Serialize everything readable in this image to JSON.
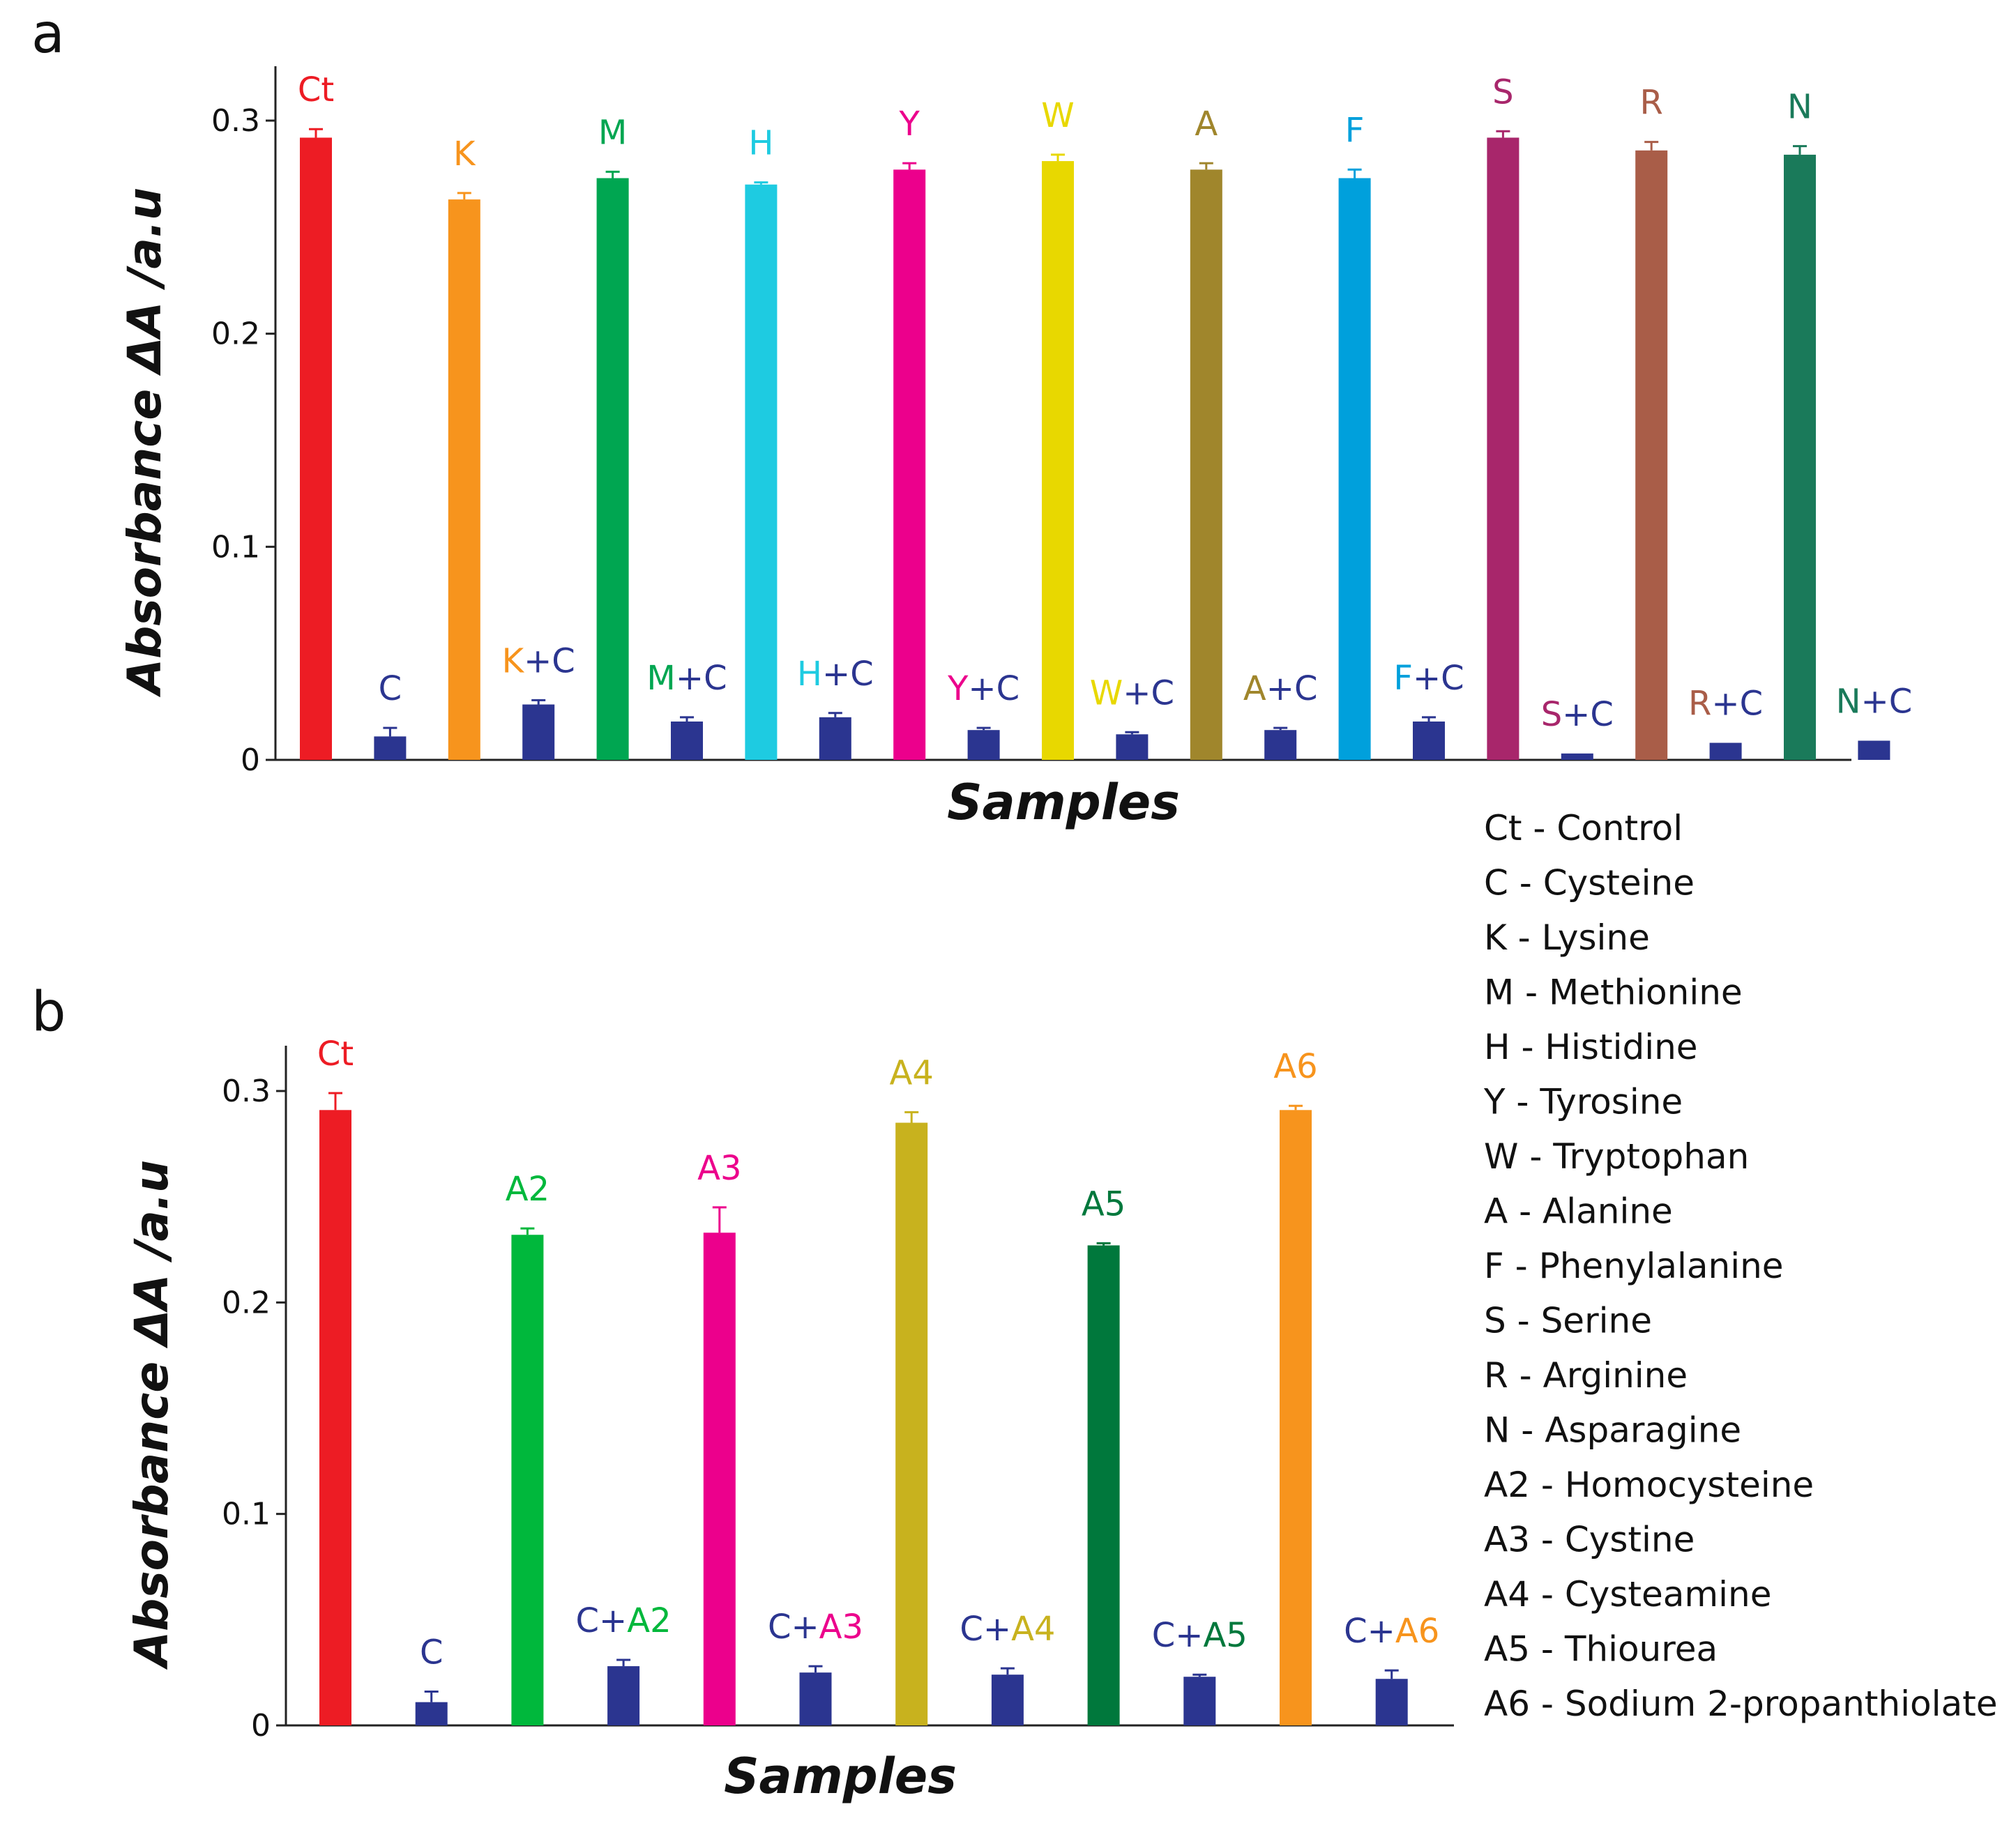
{
  "colors": {
    "combo": "#2b3590",
    "axis": "#222222"
  },
  "panel_a": {
    "letter": "a"
  },
  "panel_b": {
    "letter": "b"
  },
  "chart_data": [
    {
      "type": "bar",
      "panel": "a",
      "title": "",
      "xlabel": "Samples",
      "ylabel": "Absorbance ΔA /a.u",
      "ylim": [
        0,
        0.32
      ],
      "yticks": [
        0,
        0.1,
        0.2,
        0.3
      ],
      "ytick_labels": [
        "0",
        "0.1",
        "0.2",
        "0.3"
      ],
      "bars": [
        {
          "label": "Ct",
          "value": 0.292,
          "error": 0.004,
          "color": "#ed1c24"
        },
        {
          "label": "C",
          "value": 0.011,
          "error": 0.004,
          "color": "#2b3590",
          "label_parts": [
            {
              "text": "C",
              "color": "#2b3590"
            }
          ]
        },
        {
          "label": "K",
          "value": 0.263,
          "error": 0.003,
          "color": "#f7941d"
        },
        {
          "label": "K+C",
          "value": 0.026,
          "error": 0.002,
          "color": "#2b3590",
          "label_parts": [
            {
              "text": "K",
              "color": "#f7941d"
            },
            {
              "text": "+C",
              "color": "#2b3590"
            }
          ]
        },
        {
          "label": "M",
          "value": 0.273,
          "error": 0.003,
          "color": "#00a651"
        },
        {
          "label": "M+C",
          "value": 0.018,
          "error": 0.002,
          "color": "#2b3590",
          "label_parts": [
            {
              "text": "M",
              "color": "#00a651"
            },
            {
              "text": "+C",
              "color": "#2b3590"
            }
          ]
        },
        {
          "label": "H",
          "value": 0.27,
          "error": 0.001,
          "color": "#1ecbe1"
        },
        {
          "label": "H+C",
          "value": 0.02,
          "error": 0.002,
          "color": "#2b3590",
          "label_parts": [
            {
              "text": "H",
              "color": "#1ecbe1"
            },
            {
              "text": "+C",
              "color": "#2b3590"
            }
          ]
        },
        {
          "label": "Y",
          "value": 0.277,
          "error": 0.003,
          "color": "#ec008c"
        },
        {
          "label": "Y+C",
          "value": 0.014,
          "error": 0.001,
          "color": "#2b3590",
          "label_parts": [
            {
              "text": "Y",
              "color": "#ec008c"
            },
            {
              "text": "+C",
              "color": "#2b3590"
            }
          ]
        },
        {
          "label": "W",
          "value": 0.281,
          "error": 0.003,
          "color": "#e8d800"
        },
        {
          "label": "W+C",
          "value": 0.012,
          "error": 0.001,
          "color": "#2b3590",
          "label_parts": [
            {
              "text": "W",
              "color": "#e8d800"
            },
            {
              "text": "+C",
              "color": "#2b3590"
            }
          ]
        },
        {
          "label": "A",
          "value": 0.277,
          "error": 0.003,
          "color": "#a0862c"
        },
        {
          "label": "A+C",
          "value": 0.014,
          "error": 0.001,
          "color": "#2b3590",
          "label_parts": [
            {
              "text": "A",
              "color": "#a0862c"
            },
            {
              "text": "+C",
              "color": "#2b3590"
            }
          ]
        },
        {
          "label": "F",
          "value": 0.273,
          "error": 0.004,
          "color": "#00a0dc"
        },
        {
          "label": "F+C",
          "value": 0.018,
          "error": 0.002,
          "color": "#2b3590",
          "label_parts": [
            {
              "text": "F",
              "color": "#00a0dc"
            },
            {
              "text": "+C",
              "color": "#2b3590"
            }
          ]
        },
        {
          "label": "S",
          "value": 0.292,
          "error": 0.003,
          "color": "#a8266b"
        },
        {
          "label": "S+C",
          "value": 0.003,
          "error": 0.0,
          "color": "#2b3590",
          "label_parts": [
            {
              "text": "S",
              "color": "#a8266b"
            },
            {
              "text": "+C",
              "color": "#2b3590"
            }
          ]
        },
        {
          "label": "R",
          "value": 0.286,
          "error": 0.004,
          "color": "#a95d48"
        },
        {
          "label": "R+C",
          "value": 0.008,
          "error": 0.0,
          "color": "#2b3590",
          "label_parts": [
            {
              "text": "R",
              "color": "#a95d48"
            },
            {
              "text": "+C",
              "color": "#2b3590"
            }
          ]
        },
        {
          "label": "N",
          "value": 0.284,
          "error": 0.004,
          "color": "#1a7a5a"
        },
        {
          "label": "N+C",
          "value": 0.009,
          "error": 0.0,
          "color": "#2b3590",
          "label_parts": [
            {
              "text": "N",
              "color": "#1a7a5a"
            },
            {
              "text": "+C",
              "color": "#2b3590"
            }
          ]
        }
      ]
    },
    {
      "type": "bar",
      "panel": "b",
      "title": "",
      "xlabel": "Samples",
      "ylabel": "Absorbance ΔA /a.u",
      "ylim": [
        0,
        0.32
      ],
      "yticks": [
        0,
        0.1,
        0.2,
        0.3
      ],
      "ytick_labels": [
        "0",
        "0.1",
        "0.2",
        "0.3"
      ],
      "bars": [
        {
          "label": "Ct",
          "value": 0.291,
          "error": 0.008,
          "color": "#ed1c24"
        },
        {
          "label": "C",
          "value": 0.011,
          "error": 0.005,
          "color": "#2b3590",
          "label_parts": [
            {
              "text": "C",
              "color": "#2b3590"
            }
          ]
        },
        {
          "label": "A2",
          "value": 0.232,
          "error": 0.003,
          "color": "#00b83c"
        },
        {
          "label": "C+A2",
          "value": 0.028,
          "error": 0.003,
          "color": "#2b3590",
          "label_parts": [
            {
              "text": "C+",
              "color": "#2b3590"
            },
            {
              "text": "A2",
              "color": "#00b83c"
            }
          ]
        },
        {
          "label": "A3",
          "value": 0.233,
          "error": 0.012,
          "color": "#ec008c"
        },
        {
          "label": "C+A3",
          "value": 0.025,
          "error": 0.003,
          "color": "#2b3590",
          "label_parts": [
            {
              "text": "C+",
              "color": "#2b3590"
            },
            {
              "text": "A3",
              "color": "#ec008c"
            }
          ]
        },
        {
          "label": "A4",
          "value": 0.285,
          "error": 0.005,
          "color": "#c8b21e"
        },
        {
          "label": "C+A4",
          "value": 0.024,
          "error": 0.003,
          "color": "#2b3590",
          "label_parts": [
            {
              "text": "C+",
              "color": "#2b3590"
            },
            {
              "text": "A4",
              "color": "#c8b21e"
            }
          ]
        },
        {
          "label": "A5",
          "value": 0.227,
          "error": 0.001,
          "color": "#00783c"
        },
        {
          "label": "C+A5",
          "value": 0.023,
          "error": 0.001,
          "color": "#2b3590",
          "label_parts": [
            {
              "text": "C+",
              "color": "#2b3590"
            },
            {
              "text": "A5",
              "color": "#00783c"
            }
          ]
        },
        {
          "label": "A6",
          "value": 0.291,
          "error": 0.002,
          "color": "#f7941d"
        },
        {
          "label": "C+A6",
          "value": 0.022,
          "error": 0.004,
          "color": "#2b3590",
          "label_parts": [
            {
              "text": "C+",
              "color": "#2b3590"
            },
            {
              "text": "A6",
              "color": "#f7941d"
            }
          ]
        }
      ]
    }
  ],
  "legend": [
    "Ct - Control",
    "C - Cysteine",
    "K - Lysine",
    "M - Methionine",
    "H - Histidine",
    "Y - Tyrosine",
    "W - Tryptophan",
    "A - Alanine",
    "F - Phenylalanine",
    "S - Serine",
    "R - Arginine",
    "N - Asparagine",
    "A2 - Homocysteine",
    "A3 - Cystine",
    "A4 - Cysteamine",
    "A5 - Thiourea",
    "A6 - Sodium 2-propanthiolate"
  ]
}
